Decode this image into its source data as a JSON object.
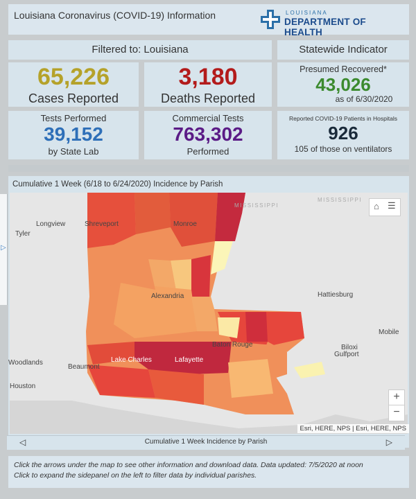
{
  "app": {
    "title": "Louisiana Coronavirus (COVID-19) Information",
    "logo_top": "LOUISIANA",
    "logo_main": "DEPARTMENT OF HEALTH"
  },
  "filter": {
    "label": "Filtered to: Louisiana"
  },
  "statewide": {
    "label": "Statewide Indicator",
    "recovered_label": "Presumed Recovered*",
    "recovered_value": "43,026",
    "recovered_date": "as of 6/30/2020",
    "hosp_label": "Reported COVID-19 Patients in Hospitals",
    "hosp_value": "926",
    "hosp_sub": "105 of those on ventilators"
  },
  "cases": {
    "value": "65,226",
    "label": "Cases Reported"
  },
  "deaths": {
    "value": "3,180",
    "label": "Deaths Reported"
  },
  "tests_state": {
    "label": "Tests Performed",
    "value": "39,152",
    "sub": "by State Lab"
  },
  "tests_commercial": {
    "label": "Commercial Tests",
    "value": "763,302",
    "sub": "Performed"
  },
  "map": {
    "title": "Cumulative 1 Week (6/18 to 6/24/2020) Incidence by Parish",
    "nav_label": "Cumulative 1 Week Incidence by Parish",
    "attribution": "Esri, HERE, NPS | Esri, HERE, NPS",
    "zoom_in": "+",
    "zoom_out": "−",
    "cities": {
      "tyler": "Tyler",
      "longview": "Longview",
      "shreveport": "Shreveport",
      "monroe": "Monroe",
      "alexandria": "Alexandria",
      "hattiesburg": "Hattiesburg",
      "mobile": "Mobile",
      "baton_rouge": "Baton Rouge",
      "biloxi": "Biloxi",
      "gulfport": "Gulfport",
      "woodlands": "Woodlands",
      "beaumont": "Beaumont",
      "lake_charles": "Lake Charles",
      "lafayette": "Lafayette",
      "houston": "Houston"
    },
    "states": {
      "mississippi_1": "MISSISSIPPI",
      "mississippi_2": "MISSISSIPPI"
    }
  },
  "footer": {
    "line1": "Click the arrows under the map to see other information and download data. Data updated: 7/5/2020 at noon",
    "line2": "Click to expand the sidepanel on the left to filter data by individual parishes."
  },
  "colors": {
    "cases": "#b5a22a",
    "deaths": "#b31b1b",
    "recovered": "#3b8a2e",
    "tests": "#2e6fb8",
    "commercial": "#5b1b86",
    "hosp": "#1a2a3a"
  }
}
